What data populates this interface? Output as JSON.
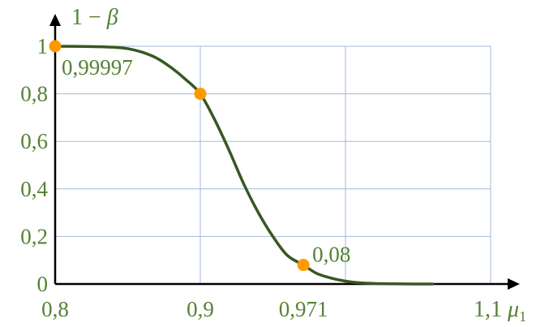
{
  "colors": {
    "curve": "#385723",
    "marker": "#ff9900",
    "grid": "#a4b9dd",
    "axis": "#000000",
    "text": "#548235"
  },
  "chart_data": {
    "type": "line",
    "x_axis": {
      "label_main": "1,1 ",
      "label_mu": "μ",
      "label_sub": "1",
      "ticks": [
        {
          "value": 0.8,
          "label": "0,8"
        },
        {
          "value": 0.9,
          "label": "0,9"
        },
        {
          "value": 0.971,
          "label": "0,971"
        }
      ],
      "gridlines": [
        0.9,
        1.0,
        1.1
      ],
      "range": [
        0.8,
        1.1
      ]
    },
    "y_axis": {
      "label_main": "1 − ",
      "label_beta": "β",
      "ticks": [
        {
          "value": 0,
          "label": "0"
        },
        {
          "value": 0.2,
          "label": "0,2"
        },
        {
          "value": 0.4,
          "label": "0,4"
        },
        {
          "value": 0.6,
          "label": "0,6"
        },
        {
          "value": 0.8,
          "label": "0,8"
        },
        {
          "value": 1,
          "label": "1"
        }
      ],
      "range": [
        0,
        1
      ]
    },
    "grid": true,
    "series": [
      {
        "x": [
          0.8,
          0.82,
          0.83,
          0.84,
          0.85,
          0.86,
          0.87,
          0.88,
          0.89,
          0.9,
          0.91,
          0.92,
          0.93,
          0.94,
          0.95,
          0.96,
          0.971,
          0.98,
          0.99,
          1.0,
          1.01,
          1.02,
          1.03,
          1.04,
          1.05,
          1.06
        ],
        "y": [
          0.99997,
          0.999,
          0.998,
          0.996,
          0.99,
          0.975,
          0.95,
          0.91,
          0.86,
          0.8,
          0.69,
          0.56,
          0.42,
          0.3,
          0.2,
          0.12,
          0.08,
          0.045,
          0.025,
          0.012,
          0.005,
          0.002,
          0.001,
          0.0003,
          0.0001,
          0.0
        ]
      }
    ],
    "highlighted_points": [
      {
        "x": 0.8,
        "y": 0.99997,
        "label": "0,99997"
      },
      {
        "x": 0.9,
        "y": 0.8,
        "label": ""
      },
      {
        "x": 0.971,
        "y": 0.08,
        "label": "0,08"
      }
    ]
  }
}
